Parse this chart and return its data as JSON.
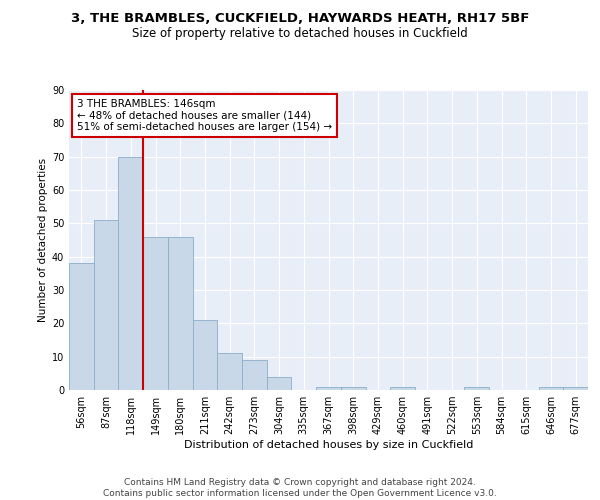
{
  "title": "3, THE BRAMBLES, CUCKFIELD, HAYWARDS HEATH, RH17 5BF",
  "subtitle": "Size of property relative to detached houses in Cuckfield",
  "xlabel": "Distribution of detached houses by size in Cuckfield",
  "ylabel": "Number of detached properties",
  "bar_color": "#c8d8e8",
  "bar_edge_color": "#8aaec8",
  "vline_color": "#cc0000",
  "vline_x_index": 2,
  "annotation_box_text": "3 THE BRAMBLES: 146sqm\n← 48% of detached houses are smaller (144)\n51% of semi-detached houses are larger (154) →",
  "annotation_box_color": "#cc0000",
  "categories": [
    "56sqm",
    "87sqm",
    "118sqm",
    "149sqm",
    "180sqm",
    "211sqm",
    "242sqm",
    "273sqm",
    "304sqm",
    "335sqm",
    "367sqm",
    "398sqm",
    "429sqm",
    "460sqm",
    "491sqm",
    "522sqm",
    "553sqm",
    "584sqm",
    "615sqm",
    "646sqm",
    "677sqm"
  ],
  "values": [
    38,
    51,
    70,
    46,
    46,
    21,
    11,
    9,
    4,
    0,
    1,
    1,
    0,
    1,
    0,
    0,
    1,
    0,
    0,
    1,
    1
  ],
  "ylim": [
    0,
    90
  ],
  "yticks": [
    0,
    10,
    20,
    30,
    40,
    50,
    60,
    70,
    80,
    90
  ],
  "background_color": "#e8eef8",
  "footer_text": "Contains HM Land Registry data © Crown copyright and database right 2024.\nContains public sector information licensed under the Open Government Licence v3.0.",
  "title_fontsize": 9.5,
  "subtitle_fontsize": 8.5,
  "xlabel_fontsize": 8,
  "ylabel_fontsize": 7.5,
  "tick_fontsize": 7,
  "annotation_fontsize": 7.5,
  "footer_fontsize": 6.5
}
